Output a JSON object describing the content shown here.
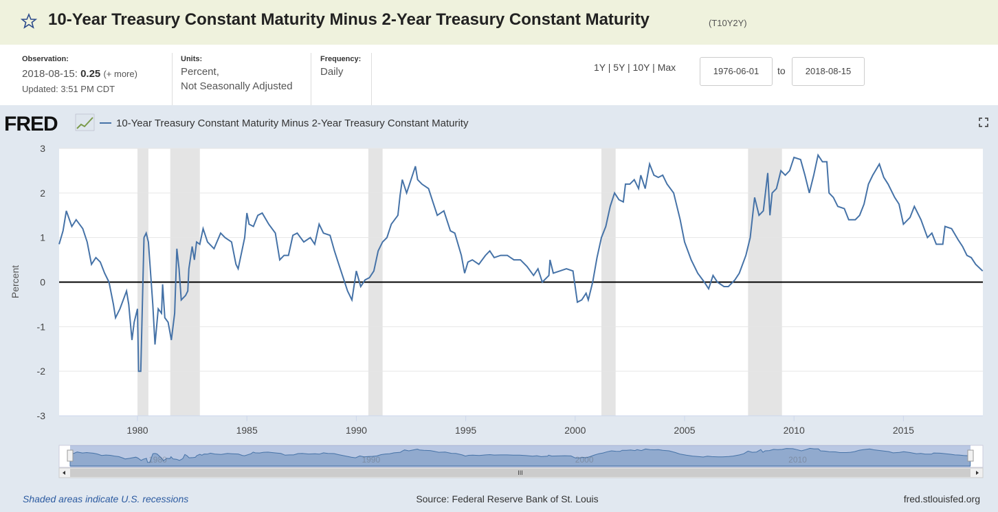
{
  "header": {
    "title": "10-Year Treasury Constant Maturity Minus 2-Year Treasury Constant Maturity",
    "ticker": "(T10Y2Y)"
  },
  "info": {
    "observation_label": "Observation:",
    "observation_date": "2018-08-15:",
    "observation_value": "0.25",
    "more": "(+ more)",
    "updated": "Updated: 3:51 PM CDT",
    "units_label": "Units:",
    "units_1": "Percent,",
    "units_2": "Not Seasonally Adjusted",
    "frequency_label": "Frequency:",
    "frequency": "Daily"
  },
  "range": {
    "links": [
      "1Y",
      "5Y",
      "10Y",
      "Max"
    ],
    "start": "1976-06-01",
    "to": "to",
    "end": "2018-08-15"
  },
  "logo": "FRED",
  "footer": {
    "note": "Shaded areas indicate U.S. recessions",
    "source": "Source: Federal Reserve Bank of St. Louis",
    "site": "fred.stlouisfed.org"
  },
  "chart_data": {
    "type": "line",
    "y_label": "Percent",
    "xlim": [
      1976.42,
      2018.63
    ],
    "xticks": [
      1980,
      1985,
      1990,
      1995,
      2000,
      2005,
      2010,
      2015
    ],
    "ylim": [
      -3,
      3
    ],
    "yticks": [
      -3,
      -2,
      -1,
      0,
      1,
      2,
      3
    ],
    "grid": true,
    "plot_lines": [
      0
    ],
    "recessions": [
      [
        1980.0,
        1980.5
      ],
      [
        1981.5,
        1982.85
      ],
      [
        1990.55,
        1991.2
      ],
      [
        2001.2,
        2001.85
      ],
      [
        2007.9,
        2009.45
      ]
    ],
    "navigator_xticks": [
      1980,
      1990,
      2000,
      2010
    ],
    "x": [
      1976.42,
      1976.6,
      1976.75,
      1977.0,
      1977.2,
      1977.5,
      1977.7,
      1977.9,
      1978.1,
      1978.3,
      1978.5,
      1978.7,
      1978.9,
      1979.0,
      1979.2,
      1979.5,
      1979.6,
      1979.75,
      1979.85,
      1980.0,
      1980.05,
      1980.15,
      1980.3,
      1980.4,
      1980.5,
      1980.7,
      1980.8,
      1980.95,
      1981.1,
      1981.15,
      1981.25,
      1981.4,
      1981.55,
      1981.7,
      1981.8,
      1981.9,
      1982.0,
      1982.2,
      1982.3,
      1982.35,
      1982.5,
      1982.6,
      1982.7,
      1982.85,
      1983.0,
      1983.2,
      1983.5,
      1983.8,
      1984.0,
      1984.3,
      1984.5,
      1984.6,
      1984.9,
      1985.0,
      1985.1,
      1985.3,
      1985.5,
      1985.7,
      1986.0,
      1986.3,
      1986.5,
      1986.7,
      1986.9,
      1987.1,
      1987.3,
      1987.6,
      1987.9,
      1988.1,
      1988.3,
      1988.5,
      1988.8,
      1989.0,
      1989.2,
      1989.4,
      1989.6,
      1989.8,
      1990.0,
      1990.2,
      1990.4,
      1990.6,
      1990.8,
      1991.0,
      1991.2,
      1991.4,
      1991.6,
      1991.9,
      1992.0,
      1992.1,
      1992.3,
      1992.5,
      1992.7,
      1992.8,
      1993.0,
      1993.3,
      1993.5,
      1993.7,
      1994.0,
      1994.3,
      1994.5,
      1994.8,
      1994.95,
      1995.1,
      1995.3,
      1995.6,
      1995.9,
      1996.1,
      1996.3,
      1996.6,
      1996.9,
      1997.2,
      1997.5,
      1997.8,
      1998.1,
      1998.3,
      1998.5,
      1998.8,
      1998.85,
      1999.0,
      1999.3,
      1999.6,
      1999.9,
      2000.1,
      2000.3,
      2000.5,
      2000.6,
      2000.8,
      2001.0,
      2001.2,
      2001.4,
      2001.6,
      2001.8,
      2002.0,
      2002.2,
      2002.3,
      2002.5,
      2002.7,
      2002.9,
      2003.0,
      2003.2,
      2003.4,
      2003.6,
      2003.8,
      2004.0,
      2004.2,
      2004.5,
      2004.8,
      2005.0,
      2005.3,
      2005.6,
      2005.9,
      2006.1,
      2006.3,
      2006.5,
      2006.8,
      2007.0,
      2007.3,
      2007.5,
      2007.8,
      2008.0,
      2008.2,
      2008.4,
      2008.6,
      2008.8,
      2008.9,
      2009.0,
      2009.2,
      2009.4,
      2009.6,
      2009.8,
      2010.0,
      2010.3,
      2010.5,
      2010.7,
      2010.9,
      2011.1,
      2011.3,
      2011.5,
      2011.6,
      2011.8,
      2012.0,
      2012.3,
      2012.5,
      2012.8,
      2013.0,
      2013.2,
      2013.4,
      2013.6,
      2013.9,
      2014.1,
      2014.3,
      2014.6,
      2014.8,
      2015.0,
      2015.3,
      2015.5,
      2015.8,
      2016.1,
      2016.3,
      2016.5,
      2016.8,
      2016.9,
      2017.2,
      2017.5,
      2017.7,
      2017.9,
      2018.1,
      2018.3,
      2018.62
    ],
    "series": [
      {
        "name": "10-Year Treasury Constant Maturity Minus 2-Year Treasury Constant Maturity",
        "color": "#4572a7",
        "values": [
          0.85,
          1.15,
          1.6,
          1.25,
          1.4,
          1.2,
          0.9,
          0.4,
          0.55,
          0.45,
          0.2,
          0.0,
          -0.5,
          -0.8,
          -0.6,
          -0.2,
          -0.5,
          -1.3,
          -0.9,
          -0.6,
          -2.0,
          -2.0,
          1.0,
          1.1,
          0.9,
          -0.5,
          -1.4,
          -0.6,
          -0.7,
          -0.05,
          -0.8,
          -0.9,
          -1.3,
          -0.7,
          0.75,
          0.3,
          -0.4,
          -0.3,
          -0.2,
          0.3,
          0.8,
          0.5,
          0.9,
          0.85,
          1.2,
          0.9,
          0.75,
          1.1,
          1.0,
          0.9,
          0.4,
          0.3,
          1.0,
          1.55,
          1.3,
          1.25,
          1.5,
          1.55,
          1.3,
          1.1,
          0.5,
          0.6,
          0.6,
          1.05,
          1.1,
          0.9,
          1.0,
          0.85,
          1.3,
          1.1,
          1.05,
          0.7,
          0.4,
          0.1,
          -0.2,
          -0.4,
          0.25,
          -0.1,
          0.05,
          0.1,
          0.25,
          0.7,
          0.9,
          1.0,
          1.3,
          1.5,
          1.95,
          2.3,
          2.0,
          2.3,
          2.6,
          2.3,
          2.2,
          2.1,
          1.8,
          1.5,
          1.6,
          1.15,
          1.1,
          0.6,
          0.2,
          0.45,
          0.5,
          0.4,
          0.6,
          0.7,
          0.55,
          0.6,
          0.6,
          0.5,
          0.5,
          0.35,
          0.15,
          0.3,
          0.0,
          0.15,
          0.5,
          0.2,
          0.25,
          0.3,
          0.25,
          -0.45,
          -0.4,
          -0.25,
          -0.4,
          0.0,
          0.55,
          1.0,
          1.25,
          1.7,
          2.0,
          1.85,
          1.8,
          2.2,
          2.2,
          2.3,
          2.1,
          2.4,
          2.1,
          2.65,
          2.4,
          2.35,
          2.4,
          2.2,
          2.0,
          1.4,
          0.9,
          0.5,
          0.2,
          0.0,
          -0.15,
          0.15,
          0.0,
          -0.1,
          -0.1,
          0.05,
          0.2,
          0.6,
          1.0,
          1.9,
          1.5,
          1.6,
          2.45,
          1.5,
          2.0,
          2.1,
          2.5,
          2.4,
          2.5,
          2.8,
          2.75,
          2.4,
          2.0,
          2.4,
          2.85,
          2.7,
          2.7,
          2.0,
          1.9,
          1.7,
          1.65,
          1.4,
          1.4,
          1.5,
          1.75,
          2.2,
          2.4,
          2.65,
          2.35,
          2.2,
          1.9,
          1.75,
          1.3,
          1.45,
          1.7,
          1.4,
          1.0,
          1.1,
          0.85,
          0.85,
          1.25,
          1.2,
          0.95,
          0.8,
          0.6,
          0.55,
          0.4,
          0.25
        ]
      }
    ]
  }
}
